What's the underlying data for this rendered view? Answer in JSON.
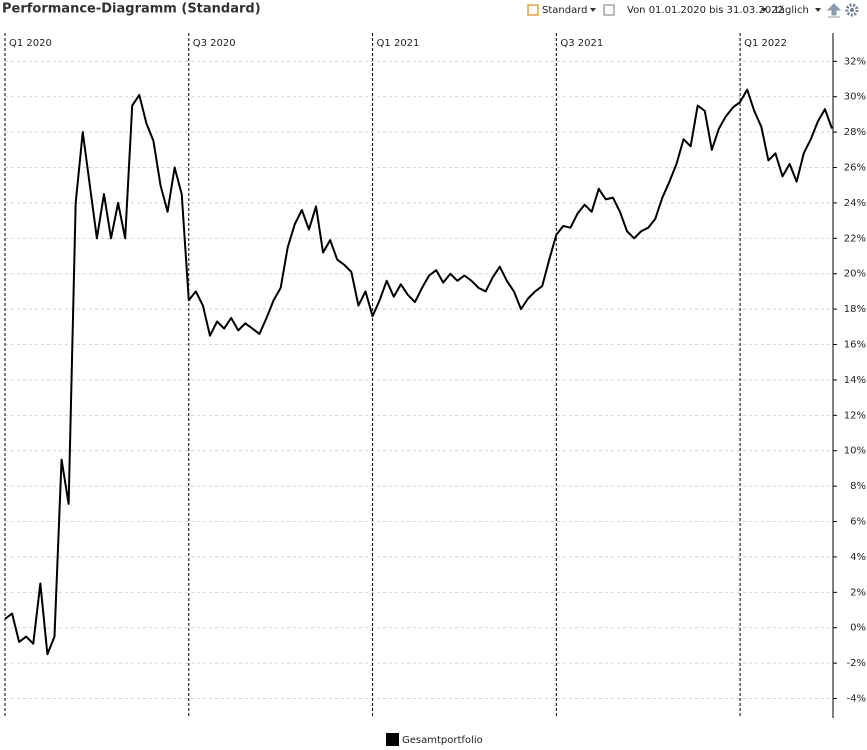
{
  "toolbar": {
    "view": "Standard",
    "range": "Von 01.01.2020 bis 31.03.2022",
    "interval": "täglich"
  },
  "chart_data": {
    "type": "line",
    "title": "Performance-Diagramm (Standard)",
    "categories": [
      "Q1 2020",
      null,
      null,
      null,
      null,
      null,
      null,
      null,
      null,
      null,
      null,
      null,
      null,
      null,
      null,
      null,
      null,
      null,
      null,
      null,
      null,
      null,
      null,
      null,
      null,
      null,
      "Q3 2020",
      null,
      null,
      null,
      null,
      null,
      null,
      null,
      null,
      null,
      null,
      null,
      null,
      null,
      null,
      null,
      null,
      null,
      null,
      null,
      null,
      null,
      null,
      null,
      null,
      null,
      "Q1 2021",
      null,
      null,
      null,
      null,
      null,
      null,
      null,
      null,
      null,
      null,
      null,
      null,
      null,
      null,
      null,
      null,
      null,
      null,
      null,
      null,
      null,
      null,
      null,
      null,
      null,
      "Q3 2021",
      null,
      null,
      null,
      null,
      null,
      null,
      null,
      null,
      null,
      null,
      null,
      null,
      null,
      null,
      null,
      null,
      null,
      null,
      null,
      null,
      null,
      null,
      null,
      null,
      null,
      "Q1 2022",
      null,
      null,
      null,
      null,
      null,
      null,
      null,
      null,
      null,
      null,
      null,
      null,
      null
    ],
    "series": [
      {
        "name": "Gesamtportfolio",
        "color": "#000000",
        "values": [
          0.5,
          0.8,
          -0.8,
          -0.5,
          -0.9,
          2.5,
          -1.5,
          -0.5,
          9.5,
          7,
          24,
          28,
          25,
          22,
          24.5,
          22,
          24,
          22,
          29.5,
          30.1,
          28.5,
          27.5,
          25,
          23.5,
          26,
          24.5,
          18.5,
          19,
          18.2,
          16.5,
          17.3,
          16.9,
          17.5,
          16.8,
          17.2,
          16.9,
          16.6,
          17.5,
          18.5,
          19.2,
          21.5,
          22.8,
          23.6,
          22.5,
          23.8,
          21.2,
          21.9,
          20.8,
          20.5,
          20.1,
          18.2,
          19,
          17.6,
          18.5,
          19.6,
          18.7,
          19.4,
          18.8,
          18.4,
          19.2,
          19.9,
          20.2,
          19.5,
          20,
          19.6,
          19.9,
          19.6,
          19.2,
          19,
          19.8,
          20.4,
          19.6,
          19,
          18,
          18.6,
          19,
          19.3,
          20.8,
          22.2,
          22.7,
          22.6,
          23.4,
          23.9,
          23.5,
          24.8,
          24.2,
          24.3,
          23.5,
          22.4,
          22,
          22.4,
          22.6,
          23.1,
          24.3,
          25.2,
          26.2,
          27.6,
          27.2,
          29.5,
          29.2,
          27,
          28.2,
          28.9,
          29.4,
          29.7,
          30.4,
          29.2,
          28.3,
          26.4,
          26.8,
          25.5,
          26.2,
          25.2,
          26.8,
          27.6,
          28.6,
          29.3,
          28.2
        ]
      }
    ],
    "ylim": [
      -5.1,
      33.6
    ],
    "yticks": [
      {
        "value": -4,
        "label": "-4%"
      },
      {
        "value": -2,
        "label": "-2%"
      },
      {
        "value": 0,
        "label": "0%"
      },
      {
        "value": 2,
        "label": "2%"
      },
      {
        "value": 4,
        "label": "4%"
      },
      {
        "value": 6,
        "label": "6%"
      },
      {
        "value": 8,
        "label": "8%"
      },
      {
        "value": 10,
        "label": "10%"
      },
      {
        "value": 12,
        "label": "12%"
      },
      {
        "value": 14,
        "label": "14%"
      },
      {
        "value": 16,
        "label": "16%"
      },
      {
        "value": 18,
        "label": "18%"
      },
      {
        "value": 20,
        "label": "20%"
      },
      {
        "value": 22,
        "label": "22%"
      },
      {
        "value": 24,
        "label": "24%"
      },
      {
        "value": 26,
        "label": "26%"
      },
      {
        "value": 28,
        "label": "28%"
      },
      {
        "value": 30,
        "label": "30%"
      },
      {
        "value": 32,
        "label": "32%"
      }
    ],
    "grid": true
  }
}
